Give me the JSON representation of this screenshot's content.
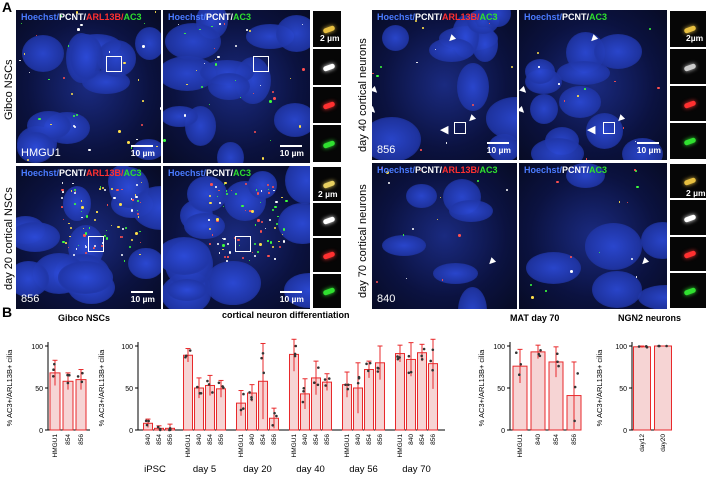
{
  "panel_letters": {
    "a": "A",
    "b": "B"
  },
  "row_labels": {
    "gibco": "Gibco NSCs",
    "day20": "day 20 cortical NSCs",
    "day40": "day 40 cortical neurons",
    "day70": "day 70 cortical neurons"
  },
  "channels": {
    "h": "Hoechst/",
    "p": "PCNT/",
    "arl": "ARL13B/",
    "ac3": "AC3",
    "colors": {
      "hoechst": "#4a7bff",
      "pcnt": "#ffffff",
      "arl13b": "#ff3030",
      "ac3": "#2ee02e"
    }
  },
  "scalebars": {
    "s10": "10 µm",
    "s2": "2 µm",
    "s2b": "2µm"
  },
  "line_labels": {
    "hmgu1": "HMGU1",
    "l856": "856",
    "l840": "840"
  },
  "section_titles": {
    "gibco": "Gibco NSCs",
    "cortical": "cortical neuron differentiation",
    "mat": "MAT day 70",
    "ngn2": "NGN2 neurons"
  },
  "chart_data": [
    {
      "type": "bar",
      "title": "Gibco NSCs",
      "ylabel": "% AC3+/ARL13B+ cilia",
      "ylim": [
        0,
        100
      ],
      "yticks": [
        "0",
        "50",
        "100"
      ],
      "categories": [
        "HMGU1",
        "854",
        "856"
      ],
      "values": [
        68,
        58,
        60
      ],
      "errors": [
        15,
        10,
        12
      ]
    },
    {
      "type": "bar",
      "title": "cortical neuron differentiation",
      "ylabel": "% AC3+/ARL13B+ cilia",
      "ylim": [
        0,
        100
      ],
      "yticks": [
        "0",
        "50",
        "100"
      ],
      "groups": [
        {
          "name": "iPSC",
          "categories": [
            "840",
            "854",
            "856"
          ],
          "values": [
            8,
            2,
            2
          ],
          "errors": [
            5,
            3,
            5
          ]
        },
        {
          "name": "day 5",
          "categories": [
            "HMGU1",
            "840",
            "854",
            "856"
          ],
          "values": [
            89,
            50,
            53,
            49
          ],
          "errors": [
            8,
            12,
            12,
            10
          ]
        },
        {
          "name": "day 20",
          "categories": [
            "HMGU1",
            "840",
            "854",
            "856"
          ],
          "values": [
            32,
            44,
            58,
            14
          ],
          "errors": [
            15,
            10,
            45,
            12
          ]
        },
        {
          "name": "day 40",
          "categories": [
            "HMGU1",
            "840",
            "854",
            "856"
          ],
          "values": [
            90,
            43,
            62,
            57
          ],
          "errors": [
            20,
            18,
            20,
            10
          ]
        },
        {
          "name": "day 56",
          "categories": [
            "HMGU1",
            "840",
            "854",
            "856"
          ],
          "values": [
            54,
            50,
            72,
            80
          ],
          "errors": [
            15,
            30,
            10,
            20
          ]
        },
        {
          "name": "day 70",
          "categories": [
            "HMGU1",
            "840",
            "854",
            "856"
          ],
          "values": [
            91,
            84,
            92,
            79
          ],
          "errors": [
            10,
            20,
            10,
            30
          ]
        }
      ]
    },
    {
      "type": "bar",
      "title": "MAT day 70",
      "ylabel": "% AC3+/ARL13B+ cilia",
      "ylim": [
        0,
        100
      ],
      "yticks": [
        "0",
        "50",
        "100"
      ],
      "categories": [
        "HMGU1",
        "840",
        "854",
        "856"
      ],
      "values": [
        76,
        93,
        81,
        41
      ],
      "errors": [
        20,
        8,
        18,
        40
      ]
    },
    {
      "type": "bar",
      "title": "NGN2 neurons",
      "ylabel": "% AC3+/ARL13B+ cilia",
      "ylim": [
        0,
        100
      ],
      "yticks": [
        "0",
        "50",
        "100"
      ],
      "categories": [
        "day12",
        "day20"
      ],
      "values": [
        99,
        100
      ],
      "errors": [
        1,
        0
      ]
    }
  ]
}
